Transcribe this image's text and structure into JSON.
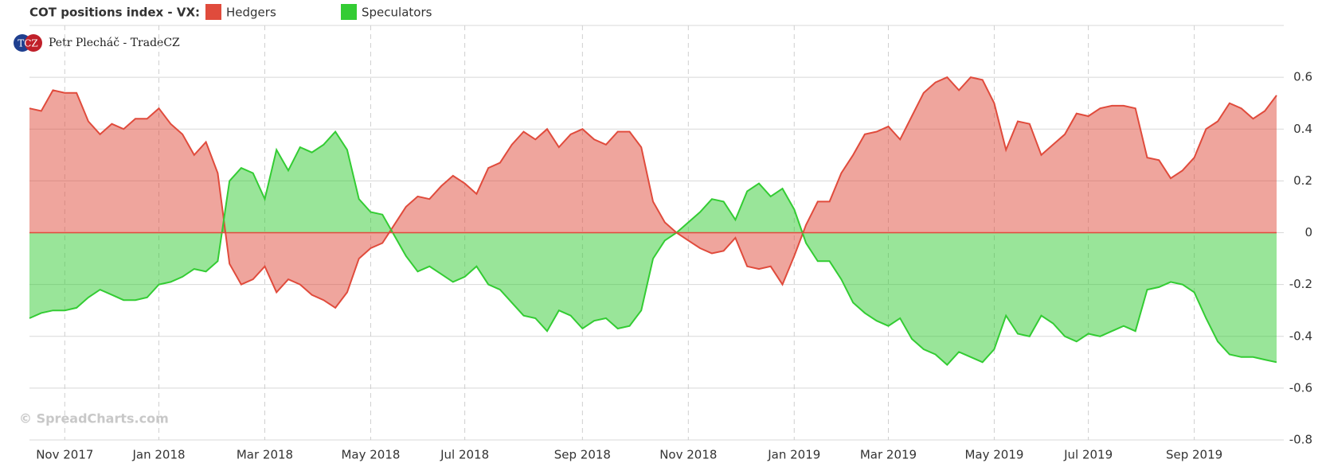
{
  "chart_data": {
    "type": "area",
    "title": "COT positions index - VX:",
    "author": "Petr Plecháč - TradeCZ",
    "logo": "TCZ",
    "watermark": "© SpreadCharts.com",
    "categories": [
      null,
      null,
      null,
      "Nov 2017",
      null,
      null,
      null,
      null,
      null,
      null,
      null,
      "Jan 2018",
      null,
      null,
      null,
      null,
      null,
      null,
      null,
      null,
      "Mar 2018",
      null,
      null,
      null,
      null,
      null,
      null,
      null,
      null,
      "May 2018",
      null,
      null,
      null,
      null,
      null,
      null,
      null,
      "Jul 2018",
      null,
      null,
      null,
      null,
      null,
      null,
      null,
      null,
      null,
      "Sep 2018",
      null,
      null,
      null,
      null,
      null,
      null,
      null,
      null,
      "Nov 2018",
      null,
      null,
      null,
      null,
      null,
      null,
      null,
      null,
      "Jan 2019",
      null,
      null,
      null,
      null,
      null,
      null,
      null,
      "Mar 2019",
      null,
      null,
      null,
      null,
      null,
      null,
      null,
      null,
      "May 2019",
      null,
      null,
      null,
      null,
      null,
      null,
      null,
      "Jul 2019",
      null,
      null,
      null,
      null,
      null,
      null,
      null,
      null,
      "Sep 2019",
      null,
      null,
      null,
      null,
      null,
      null,
      null
    ],
    "series": [
      {
        "name": "Hedgers",
        "color": "#e04b3c",
        "values": [
          0.48,
          0.47,
          0.55,
          0.54,
          0.54,
          0.43,
          0.38,
          0.42,
          0.4,
          0.44,
          0.44,
          0.48,
          0.42,
          0.38,
          0.3,
          0.35,
          0.23,
          -0.12,
          -0.2,
          -0.18,
          -0.13,
          -0.23,
          -0.18,
          -0.2,
          -0.24,
          -0.26,
          -0.29,
          -0.23,
          -0.1,
          -0.06,
          -0.04,
          0.03,
          0.1,
          0.14,
          0.13,
          0.18,
          0.22,
          0.19,
          0.15,
          0.25,
          0.27,
          0.34,
          0.39,
          0.36,
          0.4,
          0.33,
          0.38,
          0.4,
          0.36,
          0.34,
          0.39,
          0.39,
          0.33,
          0.12,
          0.04,
          0.0,
          -0.03,
          -0.06,
          -0.08,
          -0.07,
          -0.02,
          -0.13,
          -0.14,
          -0.13,
          -0.2,
          -0.09,
          0.03,
          0.12,
          0.12,
          0.23,
          0.3,
          0.38,
          0.39,
          0.41,
          0.36,
          0.45,
          0.54,
          0.58,
          0.6,
          0.55,
          0.6,
          0.59,
          0.5,
          0.32,
          0.43,
          0.42,
          0.3,
          0.34,
          0.38,
          0.46,
          0.45,
          0.48,
          0.49,
          0.49,
          0.48,
          0.29,
          0.28,
          0.21,
          0.24,
          0.29,
          0.4,
          0.43,
          0.5,
          0.48,
          0.44,
          0.47,
          0.53
        ]
      },
      {
        "name": "Speculators",
        "color": "#33cc33",
        "values": [
          -0.33,
          -0.31,
          -0.3,
          -0.3,
          -0.29,
          -0.25,
          -0.22,
          -0.24,
          -0.26,
          -0.26,
          -0.25,
          -0.2,
          -0.19,
          -0.17,
          -0.14,
          -0.15,
          -0.11,
          0.2,
          0.25,
          0.23,
          0.13,
          0.32,
          0.24,
          0.33,
          0.31,
          0.34,
          0.39,
          0.32,
          0.13,
          0.08,
          0.07,
          -0.01,
          -0.09,
          -0.15,
          -0.13,
          -0.16,
          -0.19,
          -0.17,
          -0.13,
          -0.2,
          -0.22,
          -0.27,
          -0.32,
          -0.33,
          -0.38,
          -0.3,
          -0.32,
          -0.37,
          -0.34,
          -0.33,
          -0.37,
          -0.36,
          -0.3,
          -0.1,
          -0.03,
          0.0,
          0.04,
          0.08,
          0.13,
          0.12,
          0.05,
          0.16,
          0.19,
          0.14,
          0.17,
          0.09,
          -0.04,
          -0.11,
          -0.11,
          -0.18,
          -0.27,
          -0.31,
          -0.34,
          -0.36,
          -0.33,
          -0.41,
          -0.45,
          -0.47,
          -0.51,
          -0.46,
          -0.48,
          -0.5,
          -0.45,
          -0.32,
          -0.39,
          -0.4,
          -0.32,
          -0.35,
          -0.4,
          -0.42,
          -0.39,
          -0.4,
          -0.38,
          -0.36,
          -0.38,
          -0.22,
          -0.21,
          -0.19,
          -0.2,
          -0.23,
          -0.33,
          -0.42,
          -0.47,
          -0.48,
          -0.48,
          -0.49,
          -0.5
        ]
      }
    ],
    "ylim": [
      -0.8,
      0.8
    ],
    "yticks": [
      0.6,
      0.4,
      0.2,
      0,
      -0.2,
      -0.4,
      -0.6,
      -0.8
    ],
    "grid": true
  }
}
